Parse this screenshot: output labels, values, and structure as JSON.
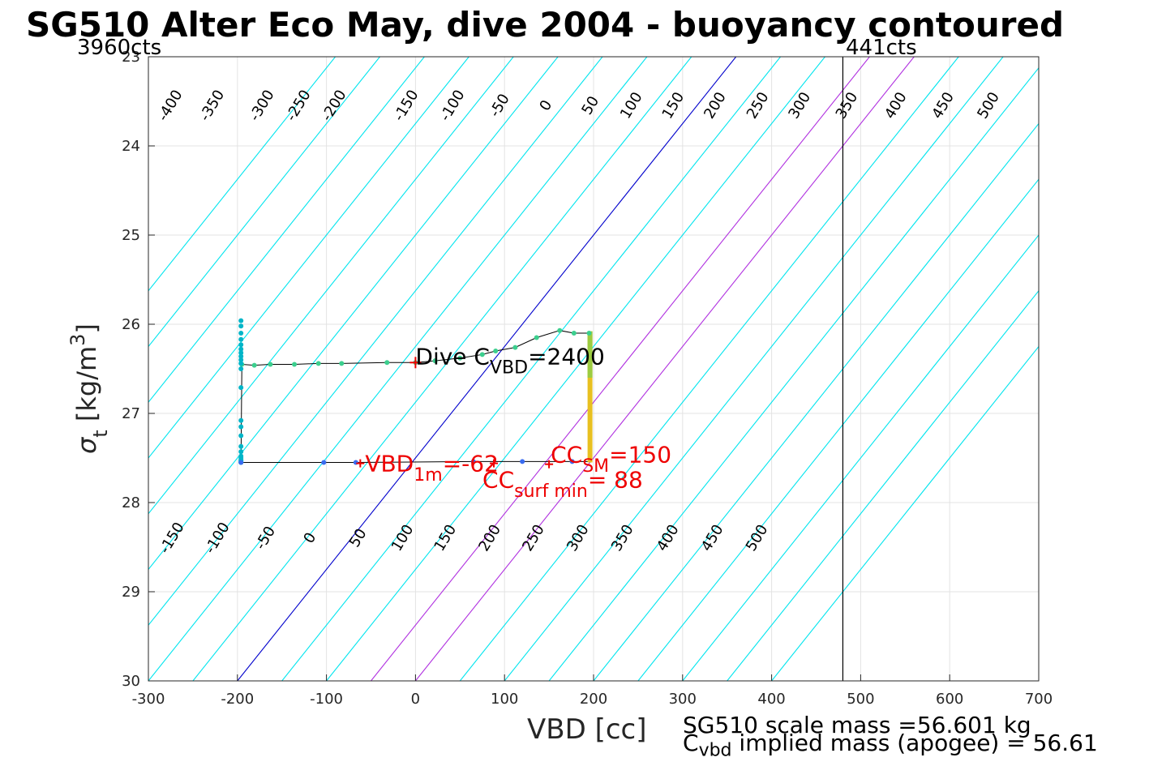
{
  "title": "SG510 Alter Eco May, dive 2004 - buoyancy contoured",
  "counts_left": "3960cts",
  "counts_right": "441cts",
  "x_axis": {
    "label": "VBD [cc]",
    "ticks": [
      "-300",
      "-200",
      "-100",
      "0",
      "100",
      "200",
      "300",
      "400",
      "500",
      "600",
      "700"
    ],
    "range": [
      -300,
      700
    ]
  },
  "y_axis": {
    "label_symbol": "σ",
    "label_sub": "t",
    "label_unit": " [kg/m",
    "label_sup": "3",
    "label_close": "]",
    "ticks": [
      "23",
      "24",
      "25",
      "26",
      "27",
      "28",
      "29",
      "30"
    ],
    "range": [
      23,
      30
    ],
    "reversed": true
  },
  "annotations": {
    "dive_c_vbd_prefix": "Dive C",
    "dive_c_vbd_sub": "VBD",
    "dive_c_vbd_value": "=2400",
    "vbd_1m_prefix": "VBD",
    "vbd_1m_sub": "1m",
    "vbd_1m_value": "=-62",
    "cc_sm_prefix": "CC",
    "cc_sm_sub": "SM",
    "cc_sm_value": "=150",
    "cc_surf_prefix": "CC",
    "cc_surf_sub": "surf min",
    "cc_surf_value": "= 88"
  },
  "footer": {
    "scale_mass": "SG510 scale mass =56.601 kg",
    "implied_prefix": "C",
    "implied_sub": "vbd",
    "implied_text": " implied mass (apogee) = 56.61"
  },
  "colors": {
    "contour": "#00e5ee",
    "zero_line": "#0000cc",
    "highlight_lines": "#b030e0",
    "annotation_red": "#ee0000",
    "descent": "#3ccf8e",
    "ascent": "#3a6cf0",
    "bottom": "#00b5c8",
    "apogee": "#e8c020"
  },
  "chart_data": {
    "type": "line",
    "xlabel": "VBD [cc]",
    "ylabel": "σ_t [kg/m^3]",
    "xlim": [
      -300,
      700
    ],
    "ylim": [
      30,
      23
    ],
    "grid": true,
    "upper_contours": {
      "slope_vbd_per_sigma": 80,
      "levels": [
        -450,
        -400,
        -350,
        -300,
        -250,
        -200,
        -150,
        -100,
        -50,
        0,
        50,
        100,
        150,
        200,
        250,
        300,
        350,
        400,
        450,
        500,
        550,
        600
      ],
      "label_levels": [
        "-400",
        "-350",
        "-300",
        "-250",
        "-200",
        "-150",
        "-100",
        "-50",
        "0",
        "50",
        "100",
        "150",
        "200",
        "250",
        "300",
        "350",
        "400",
        "450",
        "500"
      ],
      "label_positions": [
        {
          "v": -400,
          "x": -275
        },
        {
          "v": -350,
          "x": -228
        },
        {
          "v": -300,
          "x": -172
        },
        {
          "v": -250,
          "x": -131
        },
        {
          "v": -200,
          "x": -91
        },
        {
          "v": -150,
          "x": -10
        },
        {
          "v": -100,
          "x": 42
        },
        {
          "v": -50,
          "x": 95
        },
        {
          "v": 0,
          "x": 147
        },
        {
          "v": 50,
          "x": 197
        },
        {
          "v": 100,
          "x": 243
        },
        {
          "v": 150,
          "x": 290
        },
        {
          "v": 200,
          "x": 337
        },
        {
          "v": 250,
          "x": 385
        },
        {
          "v": 300,
          "x": 432
        },
        {
          "v": 350,
          "x": 485
        },
        {
          "v": 400,
          "x": 540
        },
        {
          "v": 450,
          "x": 593
        },
        {
          "v": 500,
          "x": 644
        }
      ],
      "label_sigma": 23.55,
      "highlight_levels": [
        0,
        150,
        200
      ],
      "zero_anchor_vbd_at_sigma30": -200
    },
    "lower_contours": {
      "label_levels": [
        "-150",
        "-100",
        "-50",
        "0",
        "50",
        "100",
        "150",
        "200",
        "250",
        "300",
        "350",
        "400",
        "450",
        "500"
      ],
      "label_positions": [
        {
          "v": -150,
          "x": -273
        },
        {
          "v": -100,
          "x": -222
        },
        {
          "v": -50,
          "x": -168
        },
        {
          "v": 0,
          "x": -118
        },
        {
          "v": 50,
          "x": -64
        },
        {
          "v": 100,
          "x": -14
        },
        {
          "v": 150,
          "x": 34
        },
        {
          "v": 200,
          "x": 84
        },
        {
          "v": 250,
          "x": 133
        },
        {
          "v": 300,
          "x": 183
        },
        {
          "v": 350,
          "x": 233
        },
        {
          "v": 400,
          "x": 284
        },
        {
          "v": 450,
          "x": 334
        },
        {
          "v": 500,
          "x": 384
        }
      ],
      "label_sigma": 28.4
    },
    "vertical_line_vbd": 480,
    "series": [
      {
        "segment": "descent",
        "x": [
          195,
          178,
          162,
          136,
          112,
          90,
          75,
          50,
          22,
          0,
          -32,
          -83,
          -109,
          -136,
          -163,
          -181,
          -195
        ],
        "y": [
          26.1,
          26.1,
          26.07,
          26.15,
          26.26,
          26.3,
          26.34,
          26.38,
          26.41,
          26.43,
          26.43,
          26.44,
          26.44,
          26.45,
          26.45,
          26.46,
          26.45
        ]
      },
      {
        "segment": "bottom",
        "x": [
          -196,
          -196,
          -196,
          -196,
          -196,
          -196,
          -196,
          -196,
          -196,
          -196,
          -196,
          -196,
          -196,
          -196,
          -196,
          -196,
          -196,
          -196,
          -196,
          -196,
          -196,
          -196,
          -196,
          -196
        ],
        "y": [
          25.96,
          26.02,
          26.1,
          26.17,
          26.23,
          26.28,
          26.32,
          26.36,
          26.4,
          26.44,
          26.5,
          26.71,
          27.08,
          27.15,
          27.25,
          27.37,
          27.43,
          27.48,
          27.5,
          27.52,
          27.53,
          27.54,
          27.55,
          27.55
        ]
      },
      {
        "segment": "ascent",
        "x": [
          -196,
          -103,
          -67,
          65,
          120,
          176
        ],
        "y": [
          27.55,
          27.55,
          27.55,
          27.54,
          27.54,
          27.54
        ]
      },
      {
        "segment": "apogee",
        "x": [
          196,
          196
        ],
        "y": [
          26.08,
          27.55
        ]
      }
    ],
    "markers": [
      {
        "name": "dive_c_vbd",
        "x": 0,
        "y": 26.43
      },
      {
        "name": "vbd_1m",
        "x": -62,
        "y": 27.56
      },
      {
        "name": "cc_sm",
        "x": 150,
        "y": 27.57
      },
      {
        "name": "cc_surf_min",
        "x": 88,
        "y": 27.56
      }
    ]
  }
}
